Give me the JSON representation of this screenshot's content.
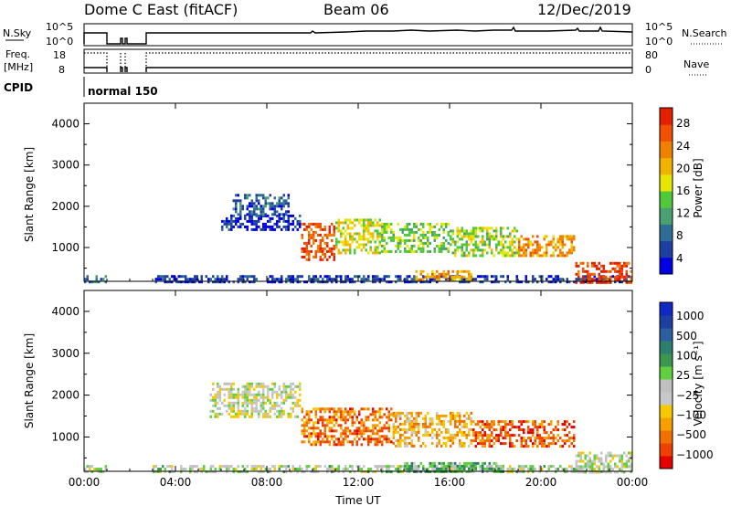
{
  "header": {
    "title": "Dome C East (fitACF)",
    "beam": "Beam 06",
    "date": "12/Dec/2019"
  },
  "summary": {
    "nsky_label": "N.Sky",
    "nsearch_label": "N.Search",
    "freq_label_1": "Freq.",
    "freq_label_2": "[MHz]",
    "nave_label": "Nave",
    "cpid_label": "CPID",
    "cpid_value": "normal 150",
    "nsky_ticks": [
      "10^5",
      "10^0"
    ],
    "nsearch_ticks": [
      "10^5",
      "10^0"
    ],
    "freq_ticks": [
      "18",
      "8"
    ],
    "nave_ticks": [
      "80",
      "0"
    ]
  },
  "colors": {
    "power": [
      "#0000e6",
      "#1f3fa0",
      "#2e6e96",
      "#4aa070",
      "#4fc83a",
      "#e6e600",
      "#f0b400",
      "#f08000",
      "#f05000",
      "#e61e00"
    ],
    "velocity": [
      "#e60000",
      "#f04000",
      "#f07000",
      "#f5a000",
      "#f5c800",
      "#c8c8c8",
      "#c0c0c0",
      "#5fd040",
      "#3c9650",
      "#2e7e6e",
      "#2a5ea0",
      "#1f3fa0",
      "#1028c8"
    ]
  },
  "chart_data": [
    {
      "type": "heatmap",
      "name": "power",
      "xlabel": "",
      "ylabel": "Slant Range [km]",
      "x_ticks": [
        "00:00",
        "04:00",
        "08:00",
        "12:00",
        "16:00",
        "20:00",
        "00:00"
      ],
      "y_ticks": [
        "1000",
        "2000",
        "3000",
        "4000"
      ],
      "xlim_hours": [
        0,
        24
      ],
      "ylim_km": [
        180,
        4500
      ],
      "colorbar_label": "Power [dB]",
      "colorbar_ticks": [
        "28",
        "24",
        "20",
        "16",
        "12",
        "8",
        "4"
      ],
      "regions": [
        {
          "t0": 0.0,
          "t1": 1.0,
          "r0": 180,
          "r1": 330,
          "level": 0.25
        },
        {
          "t0": 3.0,
          "t1": 24.0,
          "r0": 180,
          "r1": 330,
          "level": 0.15
        },
        {
          "t0": 6.0,
          "t1": 9.5,
          "r0": 1450,
          "r1": 1800,
          "level": 0.1
        },
        {
          "t0": 6.5,
          "t1": 9.0,
          "r0": 1800,
          "r1": 2300,
          "level": 0.2
        },
        {
          "t0": 9.5,
          "t1": 11.0,
          "r0": 700,
          "r1": 1600,
          "level": 0.85
        },
        {
          "t0": 11.0,
          "t1": 13.0,
          "r0": 900,
          "r1": 1700,
          "level": 0.55
        },
        {
          "t0": 13.0,
          "t1": 16.0,
          "r0": 900,
          "r1": 1600,
          "level": 0.45
        },
        {
          "t0": 16.0,
          "t1": 19.0,
          "r0": 800,
          "r1": 1500,
          "level": 0.5
        },
        {
          "t0": 19.0,
          "t1": 21.5,
          "r0": 800,
          "r1": 1300,
          "level": 0.7
        },
        {
          "t0": 14.5,
          "t1": 17.0,
          "r0": 200,
          "r1": 450,
          "level": 0.7
        },
        {
          "t0": 21.5,
          "t1": 24.0,
          "r0": 180,
          "r1": 650,
          "level": 0.9
        }
      ]
    },
    {
      "type": "heatmap",
      "name": "velocity",
      "xlabel": "Time UT",
      "ylabel": "Slant Range [km]",
      "x_ticks": [
        "00:00",
        "04:00",
        "08:00",
        "12:00",
        "16:00",
        "20:00",
        "00:00"
      ],
      "y_ticks": [
        "1000",
        "2000",
        "3000",
        "4000"
      ],
      "xlim_hours": [
        0,
        24
      ],
      "ylim_km": [
        180,
        4500
      ],
      "colorbar_label": "Velocity [m s⁻¹]",
      "colorbar_ticks": [
        "1000",
        "500",
        "100",
        "25",
        "−25",
        "−100",
        "−500",
        "−1000"
      ],
      "regions": [
        {
          "t0": 0.0,
          "t1": 1.0,
          "r0": 180,
          "r1": 330,
          "level": 0.45
        },
        {
          "t0": 3.0,
          "t1": 24.0,
          "r0": 180,
          "r1": 330,
          "level": 0.5
        },
        {
          "t0": 5.5,
          "t1": 9.5,
          "r0": 1450,
          "r1": 2300,
          "level": 0.45
        },
        {
          "t0": 9.5,
          "t1": 13.5,
          "r0": 800,
          "r1": 1700,
          "level": 0.2
        },
        {
          "t0": 13.5,
          "t1": 17.0,
          "r0": 800,
          "r1": 1600,
          "level": 0.3
        },
        {
          "t0": 17.0,
          "t1": 21.5,
          "r0": 800,
          "r1": 1400,
          "level": 0.15
        },
        {
          "t0": 14.0,
          "t1": 18.5,
          "r0": 180,
          "r1": 400,
          "level": 0.62
        },
        {
          "t0": 21.5,
          "t1": 24.0,
          "r0": 180,
          "r1": 650,
          "level": 0.48
        }
      ]
    }
  ]
}
